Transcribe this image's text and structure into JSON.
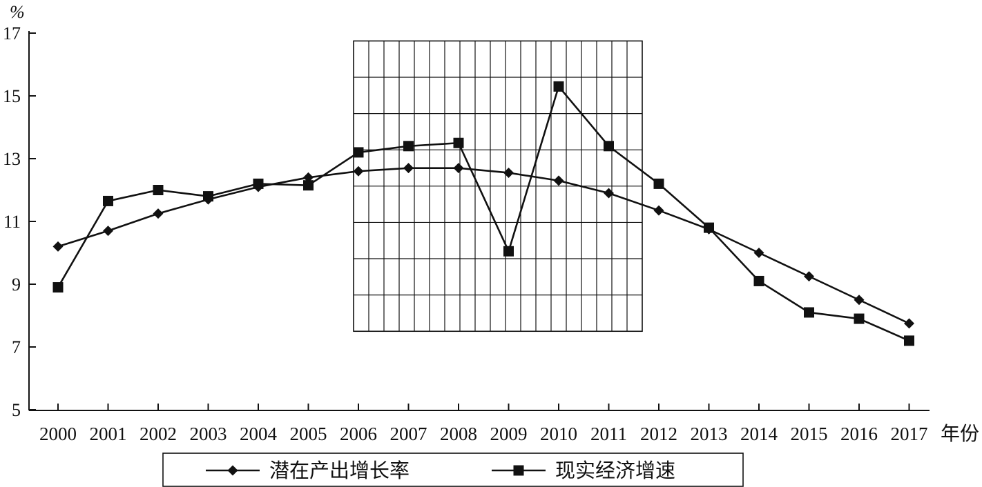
{
  "chart_data": {
    "type": "line",
    "ylabel": "%",
    "xlabel": "年份",
    "categories": [
      "2000",
      "2001",
      "2002",
      "2003",
      "2004",
      "2005",
      "2006",
      "2007",
      "2008",
      "2009",
      "2010",
      "2011",
      "2012",
      "2013",
      "2014",
      "2015",
      "2016",
      "2017"
    ],
    "ylim": [
      5,
      17
    ],
    "yticks": [
      5,
      7,
      9,
      11,
      13,
      15,
      17
    ],
    "shaded_region": {
      "x_start": "2006",
      "x_end": "2011",
      "y_range": [
        7.5,
        16.75
      ]
    },
    "series": [
      {
        "name": "潜在产出增长率",
        "marker": "diamond",
        "values": [
          10.2,
          10.7,
          11.25,
          11.7,
          12.1,
          12.4,
          12.6,
          12.7,
          12.7,
          12.55,
          12.3,
          11.9,
          11.35,
          10.75,
          10.0,
          9.25,
          8.5,
          7.75
        ]
      },
      {
        "name": "现实经济增速",
        "marker": "square",
        "values": [
          8.9,
          11.65,
          12.0,
          11.8,
          12.2,
          12.15,
          13.2,
          13.4,
          13.5,
          10.05,
          15.3,
          13.4,
          12.2,
          10.8,
          9.1,
          8.1,
          7.9,
          7.2
        ]
      }
    ],
    "legend_position": "bottom-center",
    "grid": false
  }
}
